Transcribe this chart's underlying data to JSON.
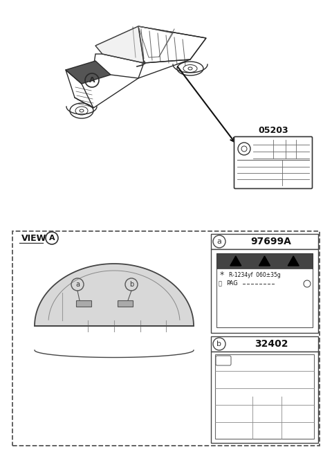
{
  "bg_color": "#ffffff",
  "part_number_top": "05203",
  "label_a_number": "97699A",
  "label_b_number": "32402",
  "view_label": "VIEW",
  "ac_label_text": "R-1234yf  060±35g",
  "pac_label_text": "PAG",
  "fig_width": 4.8,
  "fig_height": 6.56,
  "dpi": 100
}
